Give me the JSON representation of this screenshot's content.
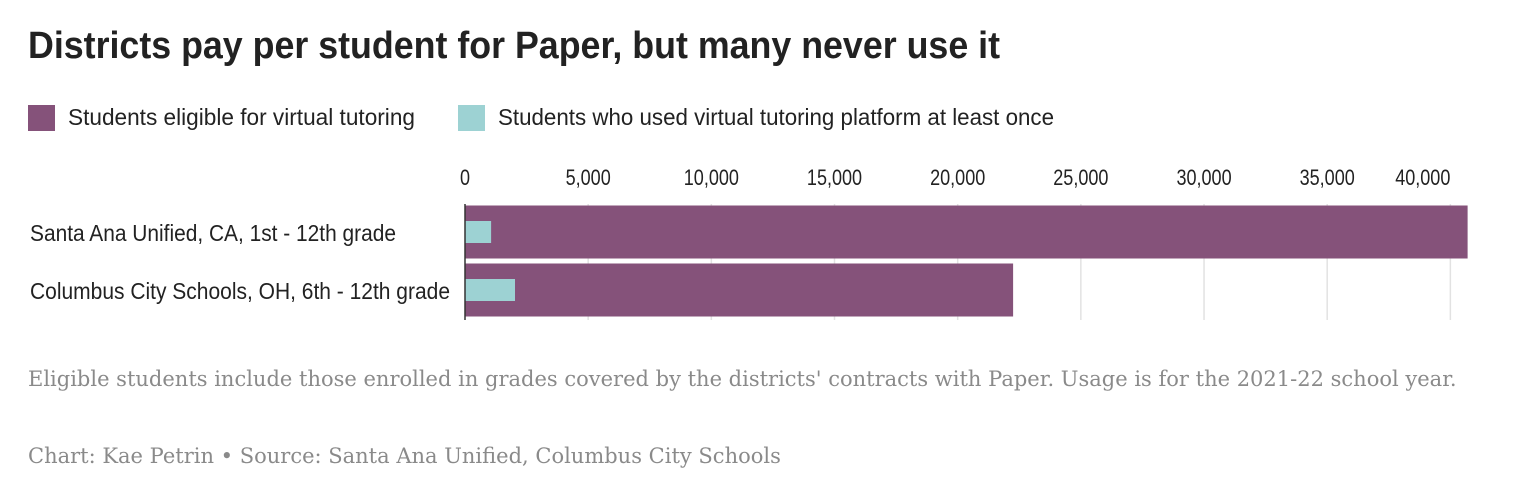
{
  "chart_data": {
    "type": "bar",
    "orientation": "horizontal",
    "title": "Districts pay per student for Paper, but many never use it",
    "categories": [
      "Santa Ana Unified, CA, 1st - 12th grade",
      "Columbus City Schools, OH, 6th - 12th grade"
    ],
    "series": [
      {
        "name": "Students eligible for virtual tutoring",
        "color": "#85527a",
        "values": [
          40700,
          22250
        ]
      },
      {
        "name": "Students who used virtual tutoring platform at least once",
        "color": "#9dd2d3",
        "values": [
          1060,
          2030
        ]
      }
    ],
    "xlim": [
      0,
      41000
    ],
    "xticks": [
      0,
      {
        "value": 5000,
        "label": "5,000"
      },
      {
        "value": 10000,
        "label": "10,000"
      },
      {
        "value": 15000,
        "label": "15,000"
      },
      {
        "value": 20000,
        "label": "20,000"
      },
      {
        "value": 25000,
        "label": "25,000"
      },
      {
        "value": 30000,
        "label": "30,000"
      },
      {
        "value": 35000,
        "label": "35,000"
      },
      {
        "value": 40000,
        "label": "40,000"
      }
    ],
    "grid": true,
    "note": "Eligible students include those enrolled in grades covered by the districts' contracts with Paper. Usage is for the 2021-22 school year.",
    "credit": "Chart: Kae Petrin • Source: Santa Ana Unified, Columbus City Schools"
  }
}
